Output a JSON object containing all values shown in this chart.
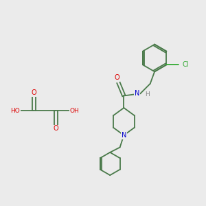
{
  "bg_color": "#ebebeb",
  "bond_color": "#4a7a4a",
  "atom_colors": {
    "O": "#dd0000",
    "N": "#0000cc",
    "Cl": "#33aa33",
    "C": "#4a7a4a",
    "H": "#888888"
  }
}
